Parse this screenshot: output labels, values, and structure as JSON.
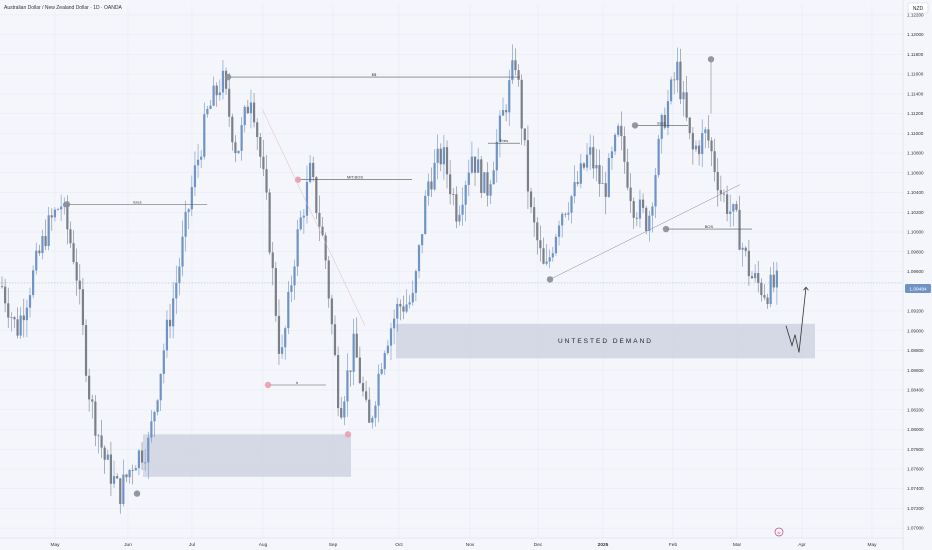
{
  "header": {
    "title": "Australian Dollar / New Zealand Dollar · 1D · OANDA",
    "currency_button": "NZD"
  },
  "colors": {
    "up": "#6f93c5",
    "down": "#7b7f88",
    "zone": "#cfd3e0",
    "grid": "#e6e9f2",
    "price_badge": "#6f93c5",
    "pink": "#e8a0ad"
  },
  "chart_data": {
    "type": "candlestick",
    "instrument": "AUDNZD",
    "timeframe": "1D",
    "x_labels": [
      "May",
      "Jun",
      "Jul",
      "Aug",
      "Sep",
      "Oct",
      "Nov",
      "Dec",
      "2025",
      "Feb",
      "Mar",
      "Apr",
      "May"
    ],
    "y_ticks": [
      "1.12200",
      "1.12000",
      "1.11800",
      "1.11600",
      "1.11400",
      "1.11200",
      "1.11000",
      "1.10800",
      "1.10600",
      "1.10400",
      "1.10200",
      "1.10000",
      "1.09800",
      "1.09600",
      "1.09400",
      "1.09200",
      "1.09000",
      "1.08800",
      "1.08600",
      "1.08400",
      "1.08200",
      "1.08000",
      "1.07800",
      "1.07600",
      "1.07400",
      "1.07200",
      "1.07000"
    ],
    "ylim": [
      1.069,
      1.123
    ],
    "last_price": "1.09484",
    "path": [
      [
        "May",
        1.0945
      ],
      [
        "May",
        1.09
      ],
      [
        "May",
        1.095
      ],
      [
        "May",
        1.1
      ],
      [
        "May",
        1.103
      ],
      [
        "May",
        1.097
      ],
      [
        "Jun",
        1.083
      ],
      [
        "Jun",
        1.077
      ],
      [
        "Jun",
        1.0735
      ],
      [
        "Jun",
        1.077
      ],
      [
        "Jun",
        1.0785
      ],
      [
        "Jun",
        1.088
      ],
      [
        "Jul",
        1.096
      ],
      [
        "Jul",
        1.105
      ],
      [
        "Jul",
        1.112
      ],
      [
        "Jul",
        1.1155
      ],
      [
        "Jul",
        1.108
      ],
      [
        "Jul",
        1.1145
      ],
      [
        "Aug",
        1.103
      ],
      [
        "Aug",
        1.0865
      ],
      [
        "Aug",
        1.0985
      ],
      [
        "Aug",
        1.106
      ],
      [
        "Aug",
        1.098
      ],
      [
        "Sep",
        1.082
      ],
      [
        "Sep",
        1.0885
      ],
      [
        "Sep",
        1.08
      ],
      [
        "Sep",
        1.0885
      ],
      [
        "Sep",
        1.0925
      ],
      [
        "Oct",
        1.093
      ],
      [
        "Oct",
        1.105
      ],
      [
        "Oct",
        1.108
      ],
      [
        "Oct",
        1.102
      ],
      [
        "Nov",
        1.108
      ],
      [
        "Nov",
        1.104
      ],
      [
        "Nov",
        1.111
      ],
      [
        "Nov",
        1.1175
      ],
      [
        "Nov",
        1.102
      ],
      [
        "Dec",
        1.0955
      ],
      [
        "Dec",
        1.102
      ],
      [
        "Dec",
        1.104
      ],
      [
        "2025",
        1.108
      ],
      [
        "2025",
        1.104
      ],
      [
        "2025",
        1.11
      ],
      [
        "2025",
        1.103
      ],
      [
        "2025",
        1.101
      ],
      [
        "Feb",
        1.111
      ],
      [
        "Feb",
        1.1165
      ],
      [
        "Feb",
        1.108
      ],
      [
        "Feb",
        1.11
      ],
      [
        "Mar",
        1.104
      ],
      [
        "Mar",
        1.101
      ],
      [
        "Mar",
        1.0955
      ],
      [
        "Mar",
        1.094
      ],
      [
        "Mar",
        1.0948
      ]
    ],
    "zones": [
      {
        "label": "",
        "x_start": "Jun",
        "x_end": "Sep",
        "y_top": 1.0795,
        "y_bottom": 1.0752
      },
      {
        "label": "UNTESTED DEMAND",
        "x_start": "Oct",
        "x_end": "Apr",
        "y_top": 1.0907,
        "y_bottom": 1.0872
      }
    ],
    "levels": [
      {
        "label": "$$",
        "price": 1.1157,
        "x_start": "Jul",
        "x_end": "Nov"
      },
      {
        "label": "Eres",
        "price": 1.1028,
        "x_start": "May",
        "x_end": "Jul"
      },
      {
        "label": "MIT.BOS",
        "price": 1.1053,
        "x_start": "Aug",
        "x_end": "Oct"
      },
      {
        "label": "Eres",
        "price": 1.109,
        "x_start": "Nov",
        "x_end": "Nov"
      },
      {
        "label": "Eres",
        "price": 1.1108,
        "x_start": "2025",
        "x_end": "Feb"
      },
      {
        "label": "BOS",
        "price": 1.1003,
        "x_start": "Feb",
        "x_end": "Mar"
      },
      {
        "label": "ir",
        "price": 1.0845,
        "x_start": "Aug",
        "x_end": "Aug"
      }
    ],
    "projection": [
      1.0905,
      1.0885,
      1.0896,
      1.0878,
      1.0944
    ]
  }
}
